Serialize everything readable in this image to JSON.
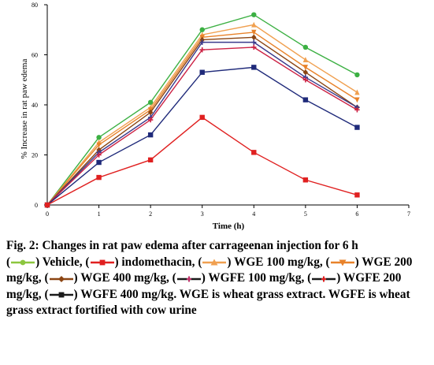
{
  "chart_data": {
    "type": "line",
    "xlabel": "Time (h)",
    "ylabel": "% Increase in rat paw edema",
    "xlim": [
      0,
      7
    ],
    "ylim": [
      0,
      80
    ],
    "xticks": [
      "0",
      "1",
      "2",
      "3",
      "4",
      "5",
      "6",
      "7"
    ],
    "yticks": [
      "0",
      "20",
      "40",
      "60",
      "80"
    ],
    "grid": false,
    "x": [
      0,
      1,
      2,
      3,
      4,
      5,
      6
    ],
    "series": [
      {
        "name": "Vehicle",
        "color": "#3cb043",
        "marker": "circle",
        "values": [
          0,
          27,
          41,
          70,
          76,
          63,
          52
        ]
      },
      {
        "name": "WGE 100 mg/kg",
        "color": "#f0a050",
        "marker": "triangle-up",
        "values": [
          0,
          25,
          39,
          68,
          72,
          58,
          45
        ]
      },
      {
        "name": "WGE 200 mg/kg",
        "color": "#e8822a",
        "marker": "triangle-down",
        "values": [
          0,
          24,
          38,
          67,
          69,
          55,
          42
        ]
      },
      {
        "name": "WGE 400 mg/kg",
        "color": "#8b4513",
        "marker": "diamond",
        "values": [
          0,
          22,
          37,
          66,
          67,
          53,
          39
        ]
      },
      {
        "name": "WGFE 100 mg/kg",
        "color": "#3a3a8c",
        "marker": "cross",
        "values": [
          0,
          21,
          35,
          65,
          65,
          51,
          39
        ]
      },
      {
        "name": "WGFE 200 mg/kg",
        "color": "#cc2244",
        "marker": "cross",
        "values": [
          0,
          20,
          34,
          62,
          63,
          50,
          38
        ]
      },
      {
        "name": "WGFE 400 mg/kg",
        "color": "#1f2a7a",
        "marker": "square",
        "values": [
          0,
          17,
          28,
          53,
          55,
          42,
          31
        ]
      },
      {
        "name": "indomethacin",
        "color": "#e02020",
        "marker": "square",
        "values": [
          0,
          11,
          18,
          35,
          21,
          10,
          4
        ]
      }
    ]
  },
  "caption": {
    "title": "Fig. 2: Changes in rat paw edema after carrageenan injection for 6 h",
    "items": [
      {
        "symbol_color": "#8cc63f",
        "symbol": "circle",
        "text": ") Vehicle, ("
      },
      {
        "symbol_color": "#e02020",
        "symbol": "square",
        "text": ") indomethacin, ("
      },
      {
        "symbol_color": "#f0a050",
        "symbol": "triangle-up",
        "text": ") WGE 100 mg/kg, ("
      },
      {
        "symbol_color": "#e8822a",
        "symbol": "triangle-down",
        "text": ") WGE 200 mg/kg, ("
      },
      {
        "symbol_color": "#8b4513",
        "symbol": "diamond",
        "text": ") WGE 400 mg/kg, ("
      },
      {
        "symbol_color": "#1a1a1a",
        "symbol": "cross",
        "text": ") WGFE 100 mg/kg, ("
      },
      {
        "symbol_color": "#1a1a1a",
        "symbol": "cross-red",
        "text": ") WGFE 200 mg/kg, ("
      },
      {
        "symbol_color": "#1a1a1a",
        "symbol": "square",
        "text": ") WGFE 400 mg/kg."
      }
    ],
    "lead": "(",
    "note": " WGE is wheat grass extract. WGFE is wheat grass extract fortified with cow urine"
  }
}
